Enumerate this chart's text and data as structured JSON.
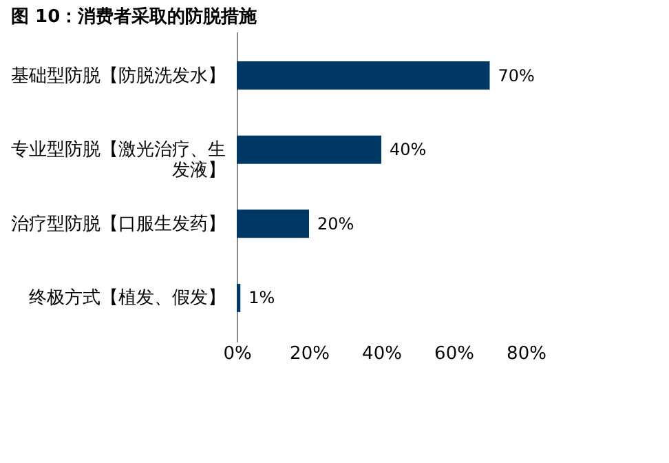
{
  "chart_data": {
    "type": "bar",
    "orientation": "horizontal",
    "title": "图 10：消费者采取的防脱措施",
    "categories": [
      "基础型防脱【防脱洗发水】",
      "专业型防脱【激光治疗、生发液】",
      "治疗型防脱【口服生发药】",
      "终极方式【植发、假发】"
    ],
    "values": [
      70,
      40,
      20,
      1
    ],
    "color": "#003865",
    "value_labels": [
      "70%",
      "40%",
      "20%",
      "1%"
    ],
    "xlim": [
      0,
      80
    ],
    "xticks": [
      {
        "value": 0,
        "label": "0%"
      },
      {
        "value": 20,
        "label": "20%"
      },
      {
        "value": 40,
        "label": "40%"
      },
      {
        "value": 60,
        "label": "60%"
      },
      {
        "value": 80,
        "label": "80%"
      }
    ],
    "grid": false
  }
}
